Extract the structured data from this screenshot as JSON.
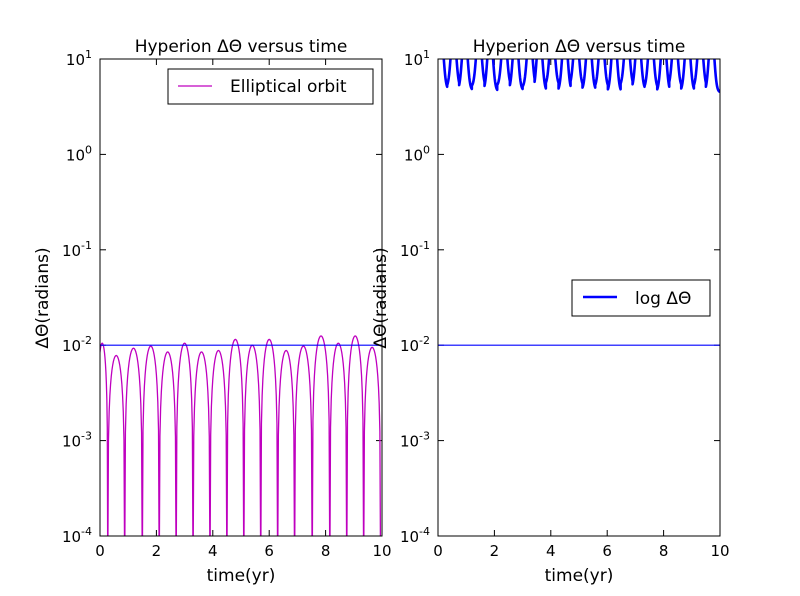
{
  "chart_data": [
    {
      "type": "line",
      "title": "Hyperion  ΔΘ versus time",
      "xlabel": "time(yr)",
      "ylabel": "ΔΘ(radians)",
      "xlim": [
        0,
        10
      ],
      "ylim": [
        0.0001,
        10
      ],
      "yscale": "log",
      "x_ticks": [
        "0",
        "2",
        "4",
        "6",
        "8",
        "10"
      ],
      "y_ticks": [
        {
          "base": "10",
          "exp": "1"
        },
        {
          "base": "10",
          "exp": "0"
        },
        {
          "base": "10",
          "exp": "-1"
        },
        {
          "base": "10",
          "exp": "-2"
        },
        {
          "base": "10",
          "exp": "-3"
        },
        {
          "base": "10",
          "exp": "-4"
        }
      ],
      "legend": {
        "position": "upper right",
        "entries": [
          {
            "label": "Elliptical orbit",
            "color": "#bf00bf"
          }
        ]
      },
      "grid": false,
      "series": [
        {
          "name": "Elliptical orbit",
          "color": "#bf00bf",
          "style": "|ΔΘ| oscillation with zero crossings (spikes down to axis floor)",
          "peak_times": [
            0.0,
            0.55,
            1.2,
            1.8,
            2.4,
            3.0,
            3.6,
            4.2,
            4.8,
            5.4,
            6.0,
            6.6,
            7.2,
            7.85,
            8.45,
            9.05,
            9.65
          ],
          "peak_values": [
            0.0105,
            0.0078,
            0.0093,
            0.0098,
            0.0085,
            0.0105,
            0.0085,
            0.0088,
            0.0115,
            0.01,
            0.0115,
            0.0088,
            0.0098,
            0.0125,
            0.0105,
            0.0125,
            0.0095
          ]
        },
        {
          "color": "#0000ff",
          "style": "horizontal reference line",
          "x": [
            0,
            10
          ],
          "y": [
            0.01,
            0.01
          ]
        }
      ]
    },
    {
      "type": "line",
      "title": "Hyperion  ΔΘ versus time",
      "xlabel": "time(yr)",
      "ylabel": "ΔΘ(radians)",
      "xlim": [
        0,
        10
      ],
      "ylim": [
        0.0001,
        10
      ],
      "yscale": "log",
      "x_ticks": [
        "0",
        "2",
        "4",
        "6",
        "8",
        "10"
      ],
      "y_ticks": [
        {
          "base": "10",
          "exp": "1"
        },
        {
          "base": "10",
          "exp": "0"
        },
        {
          "base": "10",
          "exp": "-1"
        },
        {
          "base": "10",
          "exp": "-2"
        },
        {
          "base": "10",
          "exp": "-3"
        },
        {
          "base": "10",
          "exp": "-4"
        }
      ],
      "legend": {
        "position": "center right",
        "entries": [
          {
            "label": "log ΔΘ",
            "color": "#0000ff"
          }
        ]
      },
      "grid": false,
      "series": [
        {
          "name": "log ΔΘ",
          "color": "#0000ff",
          "style": "thick oscillating line rising above the top of the axis",
          "peak_times": [
            0.1,
            0.55,
            0.95,
            1.45,
            1.85,
            2.35,
            2.75,
            3.25,
            3.6,
            4.05,
            4.5,
            4.9,
            5.35,
            5.8,
            6.25,
            6.7,
            7.1,
            7.55,
            8.0,
            8.4,
            8.85,
            9.3,
            9.7
          ],
          "trough_values": [
            4.8,
            5.0,
            4.7,
            5.1,
            4.6,
            5.2,
            4.7,
            5.0,
            4.6,
            5.3,
            4.6,
            5.2,
            4.7,
            5.0,
            4.5,
            5.2,
            4.8,
            4.9,
            4.5,
            5.1,
            4.6,
            5.0,
            4.5
          ]
        },
        {
          "color": "#0000ff",
          "style": "horizontal reference line",
          "x": [
            0,
            10
          ],
          "y": [
            0.01,
            0.01
          ]
        }
      ]
    }
  ]
}
